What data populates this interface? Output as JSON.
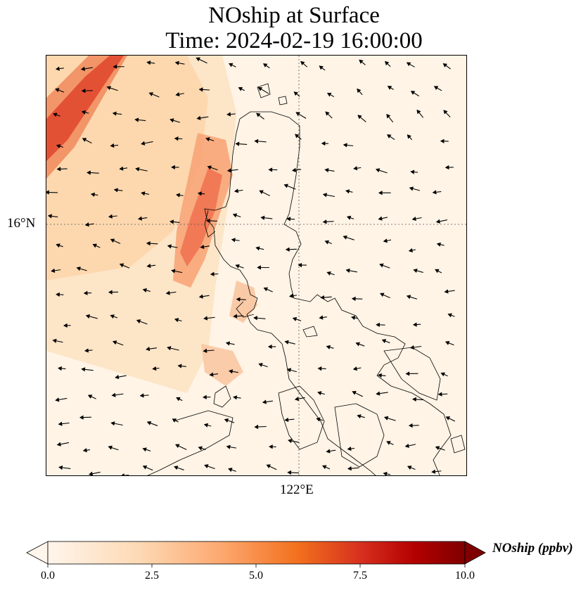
{
  "title_line1": "NOship at Surface",
  "title_line2": "Time: 2024-02-19 16:00:00",
  "map": {
    "lat_label": "16°N",
    "lon_label": "122°E",
    "variable": "NOship",
    "gridlines": "dotted, one latitude and one longitude line",
    "vector_overlay": "wind arrows, predominantly westward / south-westward",
    "coastline_color": "#000000"
  },
  "colorbar": {
    "label": "NOship (ppbv)",
    "ticks": [
      "0.0",
      "2.5",
      "5.0",
      "7.5",
      "10.0"
    ],
    "min": 0,
    "max": 10,
    "extend": "both",
    "colormap": [
      "#fff5eb",
      "#fdd9b4",
      "#fda76e",
      "#f2701d",
      "#c23e07",
      "#b30000",
      "#7f0000"
    ]
  }
}
